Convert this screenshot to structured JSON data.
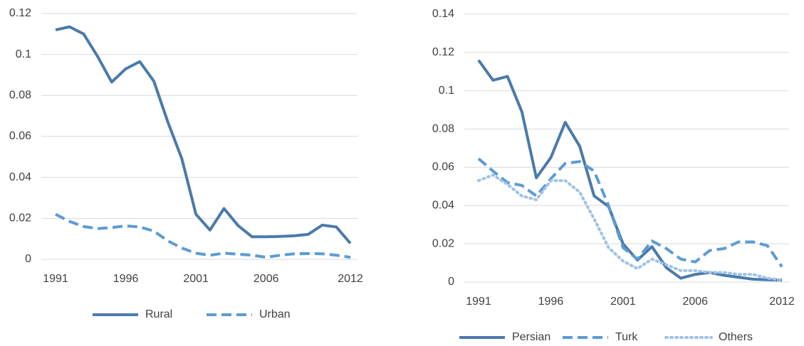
{
  "chart_data": [
    {
      "type": "line",
      "x": [
        1991,
        1992,
        1993,
        1994,
        1995,
        1996,
        1997,
        1998,
        1999,
        2000,
        2001,
        2002,
        2003,
        2004,
        2005,
        2006,
        2007,
        2008,
        2009,
        2010,
        2011,
        2012
      ],
      "xlim": [
        1991,
        2012
      ],
      "xticks": [
        1991,
        1996,
        2001,
        2006,
        2012
      ],
      "ylim": [
        0,
        0.12
      ],
      "yticks": [
        0,
        0.02,
        0.04,
        0.06,
        0.08,
        0.1,
        0.12
      ],
      "grid": true,
      "legend": "bottom",
      "series": [
        {
          "name": "Rural",
          "color": "#4a7aab",
          "style": "solid",
          "values": [
            0.112,
            0.1135,
            0.11,
            0.099,
            0.0865,
            0.093,
            0.0965,
            0.087,
            0.067,
            0.049,
            0.022,
            0.0143,
            0.0248,
            0.0165,
            0.011,
            0.011,
            0.0112,
            0.0115,
            0.0122,
            0.0167,
            0.0158,
            0.0078
          ]
        },
        {
          "name": "Urban",
          "color": "#5b9bd5",
          "style": "dashed",
          "values": [
            0.022,
            0.0185,
            0.016,
            0.015,
            0.0155,
            0.0163,
            0.0158,
            0.0138,
            0.009,
            0.0055,
            0.003,
            0.002,
            0.003,
            0.0025,
            0.002,
            0.001,
            0.002,
            0.0027,
            0.0028,
            0.0027,
            0.002,
            0.001
          ]
        }
      ]
    },
    {
      "type": "line",
      "x": [
        1991,
        1992,
        1993,
        1994,
        1995,
        1996,
        1997,
        1998,
        1999,
        2000,
        2001,
        2002,
        2003,
        2004,
        2005,
        2006,
        2007,
        2008,
        2009,
        2010,
        2011,
        2012
      ],
      "xlim": [
        1991,
        2012
      ],
      "xticks": [
        1991,
        1996,
        2001,
        2006,
        2012
      ],
      "ylim": [
        0,
        0.14
      ],
      "yticks": [
        0,
        0.02,
        0.04,
        0.06,
        0.08,
        0.1,
        0.12,
        0.14
      ],
      "grid": true,
      "legend": "bottom",
      "series": [
        {
          "name": "Persian",
          "color": "#4a7aab",
          "style": "solid",
          "values": [
            0.116,
            0.1055,
            0.1075,
            0.089,
            0.0545,
            0.065,
            0.0835,
            0.071,
            0.045,
            0.0395,
            0.02,
            0.0115,
            0.0185,
            0.0075,
            0.002,
            0.004,
            0.005,
            0.0035,
            0.0025,
            0.0015,
            0.0012,
            0.001
          ]
        },
        {
          "name": "Turk",
          "color": "#5b9bd5",
          "style": "dashed",
          "values": [
            0.0645,
            0.058,
            0.052,
            0.0505,
            0.045,
            0.054,
            0.062,
            0.063,
            0.058,
            0.04,
            0.018,
            0.012,
            0.0215,
            0.0175,
            0.012,
            0.0105,
            0.0165,
            0.0175,
            0.021,
            0.021,
            0.019,
            0.008
          ]
        },
        {
          "name": "Others",
          "color": "#9dc3e6",
          "style": "dotted",
          "values": [
            0.053,
            0.056,
            0.051,
            0.045,
            0.043,
            0.053,
            0.053,
            0.047,
            0.033,
            0.018,
            0.011,
            0.007,
            0.012,
            0.009,
            0.006,
            0.006,
            0.005,
            0.005,
            0.004,
            0.004,
            0.002,
            0.001
          ]
        }
      ]
    }
  ]
}
